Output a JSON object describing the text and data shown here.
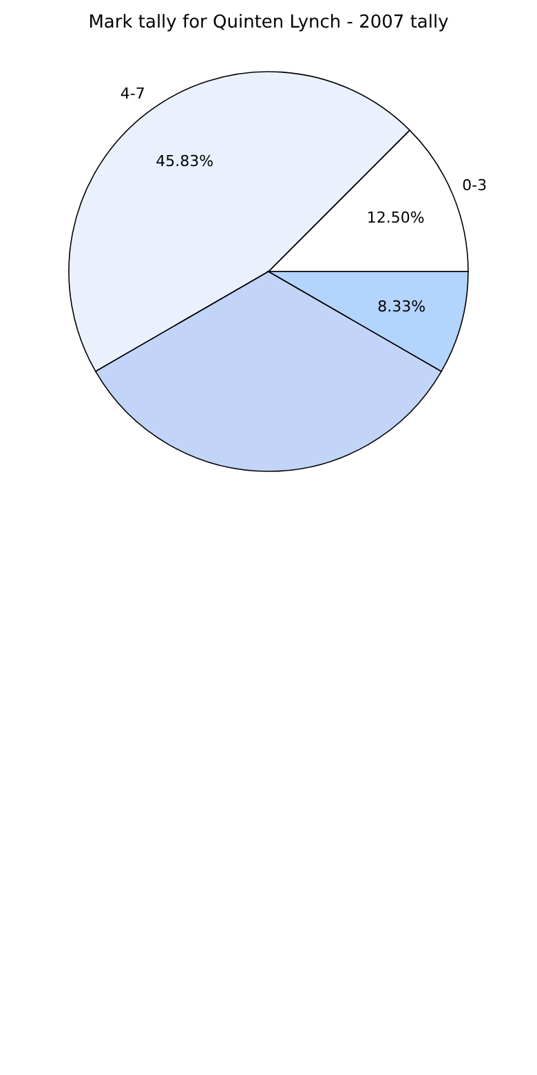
{
  "chart_data": {
    "type": "pie",
    "title": "Mark tally for Quinten Lynch - 2007 tally",
    "categories": [
      "0-3",
      "4-7",
      null,
      null
    ],
    "values": [
      12.5,
      45.83,
      33.34,
      8.33
    ],
    "value_labels": [
      "12.50%",
      "45.83%",
      null,
      "8.33%"
    ],
    "colors": [
      "#ffffff",
      "#eaf1fd",
      "#c2d4f8",
      "#b3d4fd"
    ],
    "legend": false
  }
}
